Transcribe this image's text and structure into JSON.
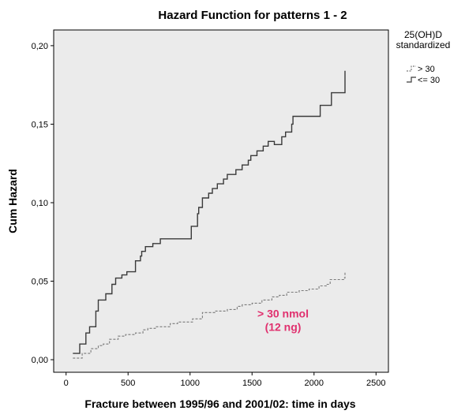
{
  "chart_data": {
    "type": "line",
    "step": true,
    "title": "Hazard Function for patterns 1 - 2",
    "xlabel": "Fracture between 1995/96 and 2001/02: time in days",
    "ylabel": "Cum Hazard",
    "xlim": [
      -100,
      2600
    ],
    "ylim": [
      -0.008,
      0.21
    ],
    "x_ticks": [
      0,
      500,
      1000,
      1500,
      2000,
      2500
    ],
    "x_tick_labels": [
      "0",
      "500",
      "1000",
      "1500",
      "2000",
      "2500"
    ],
    "y_ticks": [
      0.0,
      0.05,
      0.1,
      0.15,
      0.2
    ],
    "y_tick_labels": [
      "0,00",
      "0,05",
      "0,10",
      "0,15",
      "0,20"
    ],
    "grid": false,
    "plot_background": "#ebebeb",
    "legend": {
      "title_lines": [
        "25(OH)D",
        "standardized"
      ],
      "position": "right",
      "entries": [
        "> 30",
        "<= 30"
      ]
    },
    "annotation": {
      "lines": [
        "> 30 nmol",
        "(12 ng)"
      ],
      "color": "#e0306e",
      "x": 1750,
      "y": 0.027
    },
    "series": [
      {
        "name": "<= 30",
        "style": "solid",
        "color": "#3a3a3a",
        "x": [
          55,
          110,
          160,
          190,
          240,
          260,
          320,
          370,
          400,
          450,
          490,
          560,
          600,
          610,
          640,
          700,
          760,
          820,
          920,
          1010,
          1060,
          1070,
          1100,
          1150,
          1180,
          1220,
          1270,
          1300,
          1370,
          1420,
          1470,
          1490,
          1540,
          1590,
          1630,
          1680,
          1690,
          1740,
          1770,
          1820,
          1830,
          2010,
          2050,
          2140,
          2240,
          2250
        ],
        "y": [
          0.004,
          0.01,
          0.017,
          0.021,
          0.031,
          0.038,
          0.042,
          0.048,
          0.052,
          0.054,
          0.056,
          0.063,
          0.066,
          0.069,
          0.072,
          0.074,
          0.077,
          0.077,
          0.077,
          0.085,
          0.093,
          0.097,
          0.103,
          0.106,
          0.109,
          0.112,
          0.115,
          0.118,
          0.121,
          0.124,
          0.127,
          0.13,
          0.133,
          0.136,
          0.139,
          0.137,
          0.137,
          0.142,
          0.145,
          0.15,
          0.155,
          0.155,
          0.162,
          0.17,
          0.17,
          0.184
        ]
      },
      {
        "name": "> 30",
        "style": "dashed",
        "color": "#7a7a7a",
        "x": [
          55,
          130,
          200,
          260,
          300,
          350,
          420,
          480,
          560,
          620,
          660,
          720,
          840,
          900,
          1020,
          1100,
          1200,
          1300,
          1380,
          1420,
          1500,
          1580,
          1660,
          1720,
          1780,
          1880,
          1960,
          2040,
          2100,
          2130,
          2240,
          2250
        ],
        "y": [
          0.001,
          0.004,
          0.007,
          0.009,
          0.01,
          0.013,
          0.015,
          0.016,
          0.017,
          0.019,
          0.02,
          0.021,
          0.023,
          0.024,
          0.026,
          0.03,
          0.031,
          0.032,
          0.034,
          0.035,
          0.036,
          0.038,
          0.04,
          0.041,
          0.043,
          0.044,
          0.045,
          0.047,
          0.048,
          0.051,
          0.052,
          0.056
        ]
      }
    ]
  }
}
